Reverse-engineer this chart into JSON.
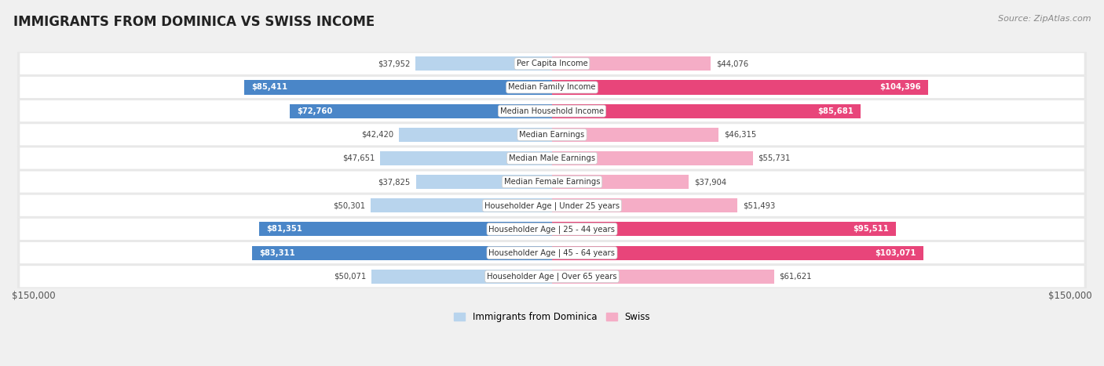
{
  "title": "IMMIGRANTS FROM DOMINICA VS SWISS INCOME",
  "source": "Source: ZipAtlas.com",
  "categories": [
    "Per Capita Income",
    "Median Family Income",
    "Median Household Income",
    "Median Earnings",
    "Median Male Earnings",
    "Median Female Earnings",
    "Householder Age | Under 25 years",
    "Householder Age | 25 - 44 years",
    "Householder Age | 45 - 64 years",
    "Householder Age | Over 65 years"
  ],
  "dominica_values": [
    37952,
    85411,
    72760,
    42420,
    47651,
    37825,
    50301,
    81351,
    83311,
    50071
  ],
  "swiss_values": [
    44076,
    104396,
    85681,
    46315,
    55731,
    37904,
    51493,
    95511,
    103071,
    61621
  ],
  "dominica_labels": [
    "$37,952",
    "$85,411",
    "$72,760",
    "$42,420",
    "$47,651",
    "$37,825",
    "$50,301",
    "$81,351",
    "$83,311",
    "$50,071"
  ],
  "swiss_labels": [
    "$44,076",
    "$104,396",
    "$85,681",
    "$46,315",
    "$55,731",
    "$37,904",
    "$51,493",
    "$95,511",
    "$103,071",
    "$61,621"
  ],
  "dominica_color_light": "#b8d4ed",
  "dominica_color_dark": "#4a86c8",
  "swiss_color_light": "#f5adc6",
  "swiss_color_dark": "#e8457a",
  "dom_dark_threshold": 70000,
  "swiss_dark_threshold": 80000,
  "max_value": 150000,
  "bar_height": 0.6,
  "background_color": "#f0f0f0",
  "row_bg_color": "#e8e8e8",
  "row_inner_color": "#ffffff",
  "legend_dominica": "Immigrants from Dominica",
  "legend_swiss": "Swiss",
  "axis_label_left": "$150,000",
  "axis_label_right": "$150,000"
}
